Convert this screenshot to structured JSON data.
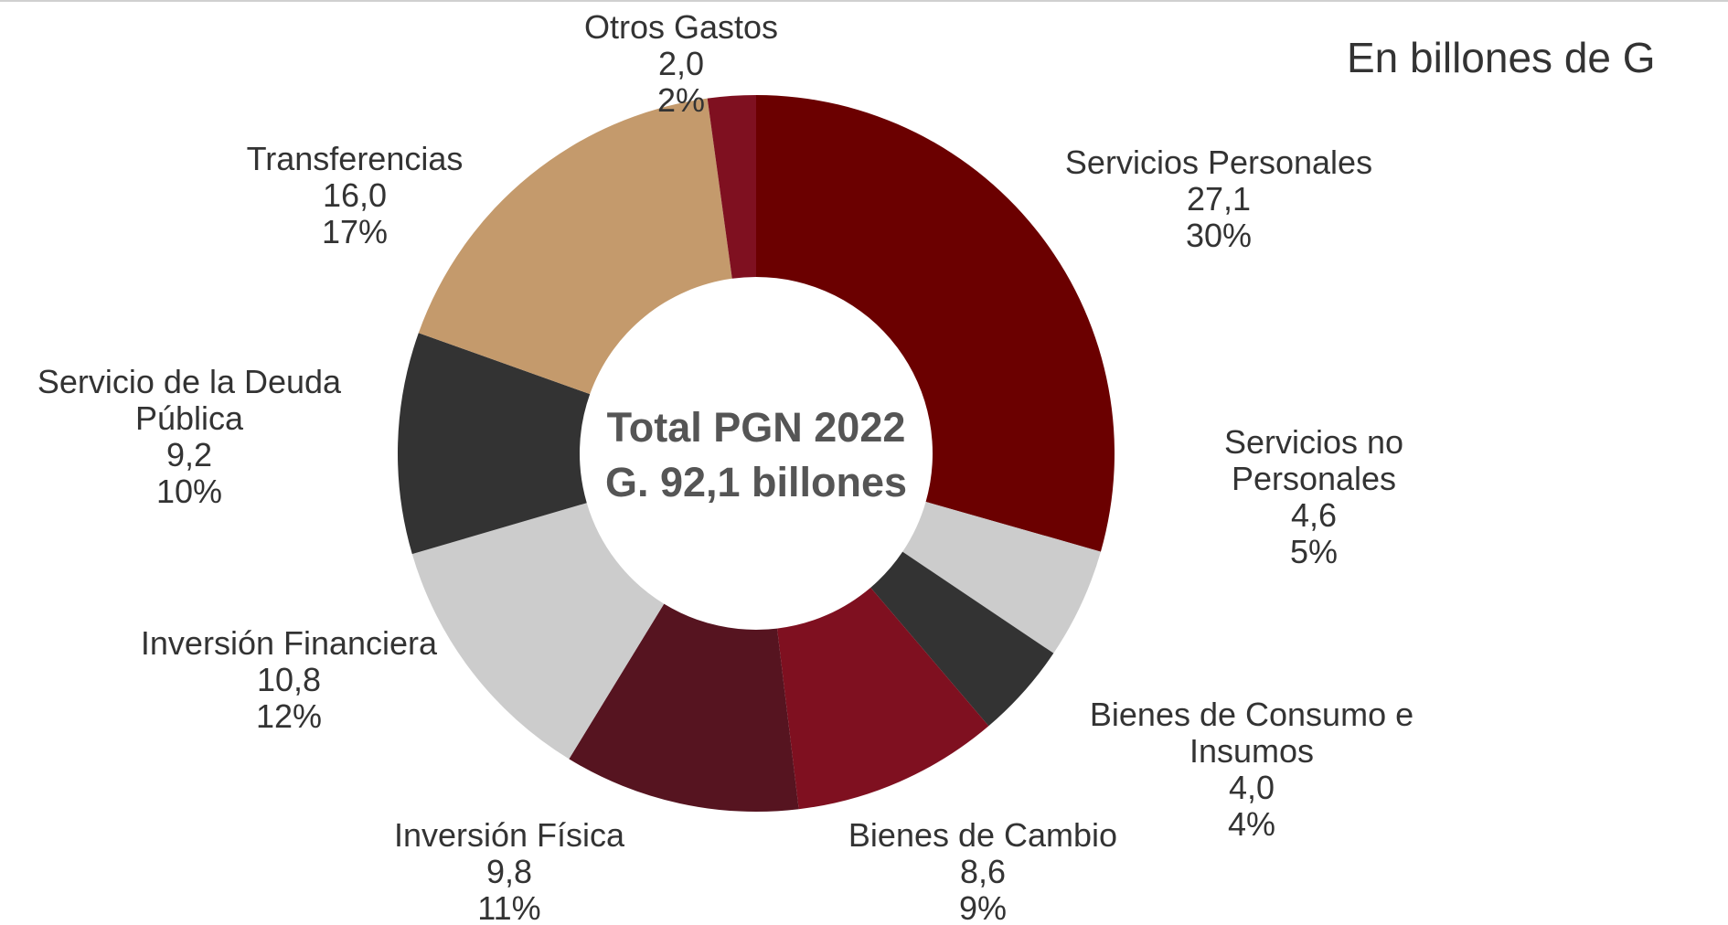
{
  "chart_data": {
    "type": "donut",
    "subtitle": "En billones de G",
    "center_text": [
      "Total PGN 2022",
      "G. 92,1 billones"
    ],
    "categories": [
      "Servicios Personales",
      "Servicios no Personales",
      "Bienes de Consumo e Insumos",
      "Bienes de Cambio",
      "Inversión Física",
      "Inversión Financiera",
      "Servicio de la Deuda Pública",
      "Transferencias",
      "Otros Gastos"
    ],
    "values": [
      27.1,
      4.6,
      4.0,
      8.6,
      9.8,
      10.8,
      9.2,
      16.0,
      2.0
    ],
    "value_labels": [
      "27,1",
      "4,6",
      "4,0",
      "8,6",
      "9,8",
      "10,8",
      "9,2",
      "16,0",
      "2,0"
    ],
    "percents": [
      30,
      5,
      4,
      9,
      11,
      12,
      10,
      17,
      2
    ],
    "percent_labels": [
      "30%",
      "5%",
      "4%",
      "9%",
      "11%",
      "12%",
      "10%",
      "17%",
      "2%"
    ],
    "colors": [
      "#6b0000",
      "#cccccc",
      "#333333",
      "#7f1020",
      "#561420",
      "#cccccc",
      "#333333",
      "#c49a6c",
      "#7f1020"
    ]
  }
}
